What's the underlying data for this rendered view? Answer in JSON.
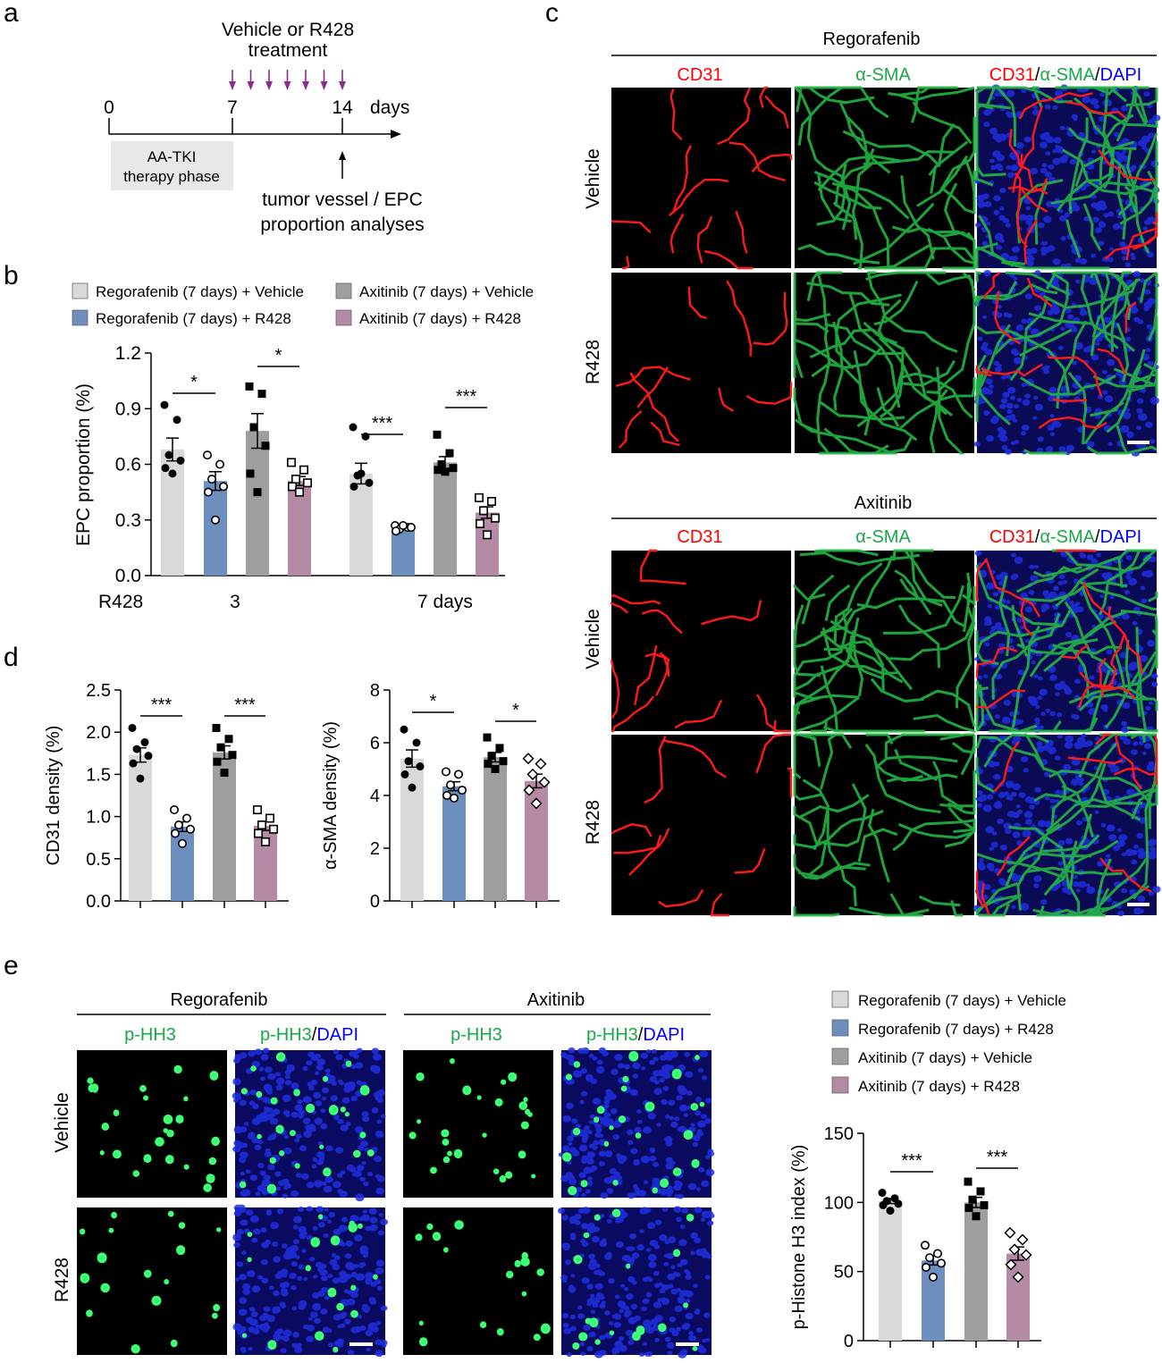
{
  "panel_letters": {
    "a": "a",
    "b": "b",
    "c": "c",
    "d": "d",
    "e": "e"
  },
  "colors": {
    "reg_vehicle": "#d9d9d9",
    "reg_r428": "#6d8fc0",
    "axi_vehicle": "#9e9e9e",
    "axi_r428": "#b48aa5",
    "cd31": "#ff0000",
    "sma": "#1aa84a",
    "dapi": "#0000ff",
    "arrow": "#8b2b8b"
  },
  "timeline": {
    "header_line1": "Vehicle or R428",
    "header_line2": "treatment",
    "tick_0": "0",
    "tick_7": "7",
    "tick_14": "14",
    "unit": "days",
    "phase_line1": "AA-TKI",
    "phase_line2": "therapy phase",
    "analysis_line1": "tumor vessel / EPC",
    "analysis_line2": "proportion analyses"
  },
  "legend_b": {
    "reg_vehicle": "Regorafenib (7 days) + Vehicle",
    "axi_vehicle": "Axitinib (7 days) + Vehicle",
    "reg_r428": "Regorafenib (7 days) + R428",
    "axi_r428": "Axitinib (7 days) + R428"
  },
  "legend_e": {
    "reg_vehicle": "Regorafenib (7 days) + Vehicle",
    "reg_r428": "Regorafenib (7 days) + R428",
    "axi_vehicle": "Axitinib (7 days) + Vehicle",
    "axi_r428": "Axitinib (7 days) + R428"
  },
  "panel_c": {
    "group1": "Regorafenib",
    "group2": "Axitinib",
    "col_cd31": "CD31",
    "col_sma": "α-SMA",
    "merge_cd31": "CD31",
    "merge_sep1": "/",
    "merge_sma": "α-SMA",
    "merge_sep2": "/",
    "merge_dapi": "DAPI",
    "row_vehicle": "Vehicle",
    "row_r428": "R428"
  },
  "panel_e_images": {
    "group1": "Regorafenib",
    "group2": "Axitinib",
    "col_phh3": "p-HH3",
    "merge_phh3": "p-HH3",
    "merge_sep": "/",
    "merge_dapi": "DAPI",
    "row_vehicle": "Vehicle",
    "row_r428": "R428"
  },
  "chart_data": [
    {
      "id": "epc",
      "type": "bar",
      "ylabel": "EPC proportion (%)",
      "ylim": [
        0,
        1.2
      ],
      "yticks": [
        "0.0",
        "0.3",
        "0.6",
        "0.9",
        "1.2"
      ],
      "x_prefix": "R428",
      "x_groups": [
        "3",
        "7  days"
      ],
      "series": [
        {
          "name": "Regorafenib (7 days) + Vehicle",
          "values": [
            0.68,
            0.55
          ]
        },
        {
          "name": "Regorafenib (7 days) + R428",
          "values": [
            0.51,
            0.26
          ]
        },
        {
          "name": "Axitinib (7 days) + Vehicle",
          "values": [
            0.78,
            0.61
          ]
        },
        {
          "name": "Axitinib (7 days) + R428",
          "values": [
            0.51,
            0.34
          ]
        }
      ],
      "points": [
        [
          [
            0.92,
            0.84,
            0.65,
            0.62,
            0.58,
            0.55
          ],
          [
            0.8,
            0.75,
            0.54,
            0.5,
            0.48,
            0.55
          ]
        ],
        [
          [
            0.65,
            0.6,
            0.52,
            0.48,
            0.45,
            0.3
          ],
          [
            0.27,
            0.26,
            0.25,
            0.26,
            0.24,
            0.27
          ]
        ],
        [
          [
            1.02,
            0.98,
            0.8,
            0.7,
            0.55,
            0.45
          ],
          [
            0.76,
            0.66,
            0.6,
            0.58,
            0.57,
            0.56
          ]
        ],
        [
          [
            0.61,
            0.57,
            0.52,
            0.5,
            0.48,
            0.45
          ],
          [
            0.42,
            0.4,
            0.35,
            0.31,
            0.28,
            0.22
          ]
        ]
      ],
      "significance": [
        [
          "*",
          "*"
        ],
        [
          "***",
          "***"
        ]
      ]
    },
    {
      "id": "cd31",
      "type": "bar",
      "ylabel": "CD31 density  (%)",
      "ylim": [
        0,
        2.5
      ],
      "yticks": [
        "0.0",
        "0.5",
        "1.0",
        "1.5",
        "2.0",
        "2.5"
      ],
      "categories": [
        "Regorafenib (7 days) + Vehicle",
        "Regorafenib (7 days) + R428",
        "Axitinib (7 days) + Vehicle",
        "Axitinib (7 days) + R428"
      ],
      "values": [
        1.73,
        0.88,
        1.76,
        0.89
      ],
      "points": [
        [
          2.05,
          1.88,
          1.8,
          1.72,
          1.63,
          1.45
        ],
        [
          1.08,
          0.98,
          0.9,
          0.85,
          0.8,
          0.68
        ],
        [
          2.05,
          1.92,
          1.82,
          1.73,
          1.65,
          1.52
        ],
        [
          1.08,
          0.98,
          0.9,
          0.85,
          0.8,
          0.7
        ]
      ],
      "significance": [
        "***",
        "***"
      ]
    },
    {
      "id": "sma",
      "type": "bar",
      "ylabel": "α-SMA density (%)",
      "ylim": [
        0,
        8
      ],
      "yticks": [
        "0",
        "2",
        "4",
        "6",
        "8"
      ],
      "categories": [
        "Regorafenib (7 days) + Vehicle",
        "Regorafenib (7 days) + R428",
        "Axitinib (7 days) + Vehicle",
        "Axitinib (7 days) + R428"
      ],
      "values": [
        5.4,
        4.35,
        5.45,
        4.55
      ],
      "points": [
        [
          6.5,
          6.0,
          5.3,
          5.1,
          4.8,
          4.3
        ],
        [
          4.9,
          4.8,
          4.4,
          4.2,
          4.0,
          3.9
        ],
        [
          6.2,
          5.8,
          5.5,
          5.3,
          5.2,
          5.0
        ],
        [
          5.4,
          5.2,
          4.8,
          4.5,
          4.2,
          3.7
        ]
      ],
      "significance": [
        "*",
        "*"
      ]
    },
    {
      "id": "phh3",
      "type": "bar",
      "ylabel": "p-Histone H3 index (%)",
      "ylim": [
        0,
        150
      ],
      "yticks": [
        "0",
        "50",
        "100",
        "150"
      ],
      "categories": [
        "Regorafenib (7 days) + Vehicle",
        "Regorafenib (7 days) + R428",
        "Axitinib (7 days) + Vehicle",
        "Axitinib (7 days) + R428"
      ],
      "values": [
        101,
        58,
        100,
        63
      ],
      "points": [
        [
          107,
          103,
          101,
          99,
          98,
          94
        ],
        [
          69,
          63,
          60,
          56,
          53,
          46
        ],
        [
          115,
          108,
          102,
          98,
          96,
          90
        ],
        [
          78,
          73,
          66,
          62,
          55,
          46
        ]
      ],
      "significance": [
        "***",
        "***"
      ]
    }
  ]
}
